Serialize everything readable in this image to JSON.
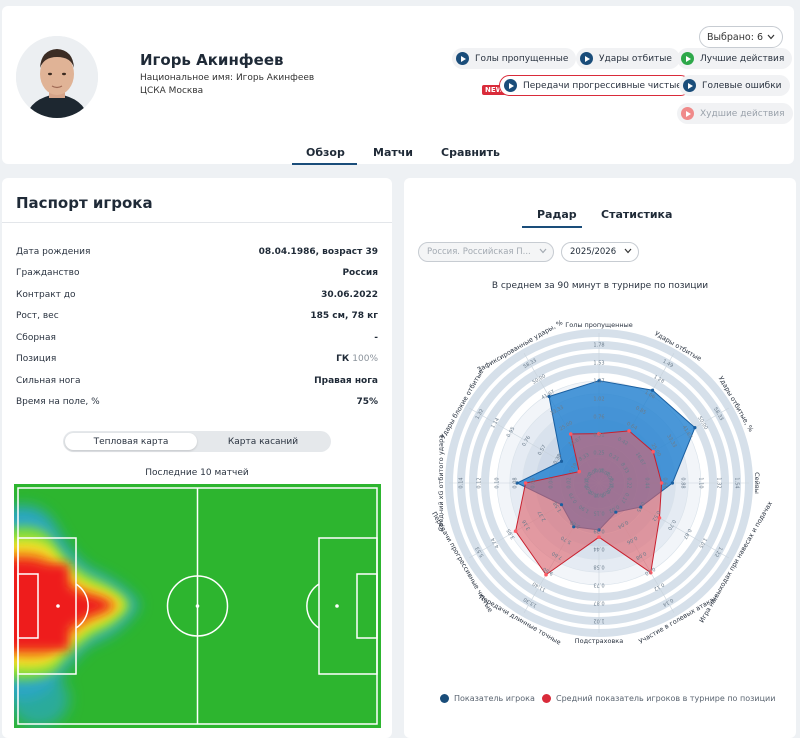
{
  "player": {
    "name": "Игорь Акинфеев",
    "national_name": "Национальное имя: Игорь Акинфеев",
    "club": "ЦСКА Москва"
  },
  "video_filter": {
    "selected_label": "Выбрано: 6",
    "pills": [
      {
        "label": "Голы пропущенные",
        "color": "#1a4d7a",
        "state": "normal"
      },
      {
        "label": "Удары отбитые",
        "color": "#1a4d7a",
        "state": "normal"
      },
      {
        "label": "Лучшие действия",
        "color": "#2ea84a",
        "state": "normal"
      },
      {
        "label": "Передачи прогрессивные чистые",
        "color": "#1a4d7a",
        "state": "outlined"
      },
      {
        "label": "Голевые ошибки",
        "color": "#1a4d7a",
        "state": "normal"
      },
      {
        "label": "Худшие действия",
        "color": "#f08a8a",
        "state": "disabled"
      }
    ],
    "new_badge": "NEW"
  },
  "nav_tabs": [
    {
      "label": "Обзор",
      "active": true
    },
    {
      "label": "Матчи",
      "active": false
    },
    {
      "label": "Сравнить",
      "active": false
    }
  ],
  "passport": {
    "title": "Паспорт игрока",
    "rows": [
      {
        "label": "Дата рождения",
        "value": "08.04.1986, возраст 39",
        "extra": ""
      },
      {
        "label": "Гражданство",
        "value": "Россия",
        "extra": ""
      },
      {
        "label": "Контракт до",
        "value": "30.06.2022",
        "extra": ""
      },
      {
        "label": "Рост, вес",
        "value": "185 см, 78 кг",
        "extra": ""
      },
      {
        "label": "Сборная",
        "value": "-",
        "extra": ""
      },
      {
        "label": "Позиция",
        "value": "ГК",
        "extra": "100%"
      },
      {
        "label": "Сильная нога",
        "value": "Правая нога",
        "extra": ""
      },
      {
        "label": "Время на поле, %",
        "value": "75%",
        "extra": ""
      }
    ],
    "toggle": [
      "Тепловая карта",
      "Карта касаний"
    ],
    "heatmap_caption": "Последние 10 матчей"
  },
  "radar": {
    "tabs": [
      {
        "label": "Радар",
        "active": true
      },
      {
        "label": "Статистика",
        "active": false
      }
    ],
    "league_select": "Россия. Российская П...",
    "season_select": "2025/2026",
    "caption": "В среднем за 90 минут в турнире по позиции",
    "legend": [
      {
        "label": "Показатель игрока",
        "color": "#1a4d7a"
      },
      {
        "label": "Средний показатель игроков в турнире по позиции",
        "color": "#d92b3a"
      }
    ],
    "colors": {
      "player": "#1f7fd0",
      "average": "#e0626a",
      "ring": "#cfdbe6"
    }
  },
  "chart_data": {
    "type": "radar",
    "title": "В среднем за 90 минут в турнире по позиции",
    "axes": [
      {
        "label": "Голы пропущенные",
        "ticks": [
          "0.00",
          "0.25",
          "0.51",
          "0.76",
          "1.02",
          "1.27",
          "1.53",
          "1.78"
        ]
      },
      {
        "label": "Удары отбитые",
        "ticks": [
          "0.00",
          "0.21",
          "0.42",
          "0.64",
          "0.85",
          "1.06",
          "1.28",
          "1.49"
        ]
      },
      {
        "label": "Удары отбитые, %",
        "ticks": [
          "0.00",
          "8.33",
          "16.67",
          "25.00",
          "33.33",
          "41.67",
          "50.00",
          "58.33"
        ]
      },
      {
        "label": "Сейвы",
        "ticks": [
          "0.00",
          "0.22",
          "0.44",
          "0.66",
          "0.88",
          "1.10",
          "1.32",
          "1.54"
        ]
      },
      {
        "label": "Игра на выходах при навесах и подачах",
        "ticks": [
          "0.00",
          "0.17",
          "0.35",
          "0.52",
          "0.70",
          "0.87",
          "1.05",
          "1.22"
        ]
      },
      {
        "label": "Участие в голевых атаках",
        "ticks": [
          "0.00",
          "0.02",
          "0.04",
          "0.06",
          "0.08",
          "0.10",
          "0.12",
          "0.14"
        ]
      },
      {
        "label": "Подстраховка",
        "ticks": [
          "0.00",
          "0.15",
          "0.29",
          "0.44",
          "0.58",
          "0.73",
          "0.87",
          "1.02"
        ]
      },
      {
        "label": "Передачи длинные точные",
        "ticks": [
          "0.00",
          "1.90",
          "3.80",
          "5.70",
          "7.60",
          "9.50",
          "11.40",
          "13.30"
        ]
      },
      {
        "label": "Передачи прогрессивные чистые",
        "ticks": [
          "0.00",
          "0.79",
          "1.58",
          "2.37",
          "3.16",
          "3.95",
          "4.74",
          "5.53"
        ]
      },
      {
        "label": "Средний xG отбитого удара",
        "ticks": [
          "0.00",
          "0.02",
          "0.04",
          "0.06",
          "0.08",
          "0.10",
          "0.12",
          "0.14"
        ]
      },
      {
        "label": "Удары блокие отбитые",
        "ticks": [
          "0.00",
          "0.19",
          "0.38",
          "0.57",
          "0.76",
          "0.95",
          "1.14",
          "1.32"
        ]
      },
      {
        "label": "Зафиксированные удары, %",
        "ticks": [
          "0.00",
          "8.33",
          "16.67",
          "25.00",
          "33.33",
          "41.67",
          "50.00",
          "58.33"
        ]
      }
    ],
    "series": [
      {
        "name": "Показатель игрока",
        "values": [
          0.85,
          0.89,
          0.92,
          0.61,
          0.4,
          0.28,
          0.39,
          0.42,
          0.36,
          0.68,
          0.36,
          0.83
        ]
      },
      {
        "name": "Средний показатель игроков в турнире по позиции",
        "values": [
          0.41,
          0.5,
          0.52,
          0.52,
          0.58,
          0.86,
          0.45,
          0.88,
          0.8,
          0.61,
          0.19,
          0.47
        ]
      }
    ]
  }
}
